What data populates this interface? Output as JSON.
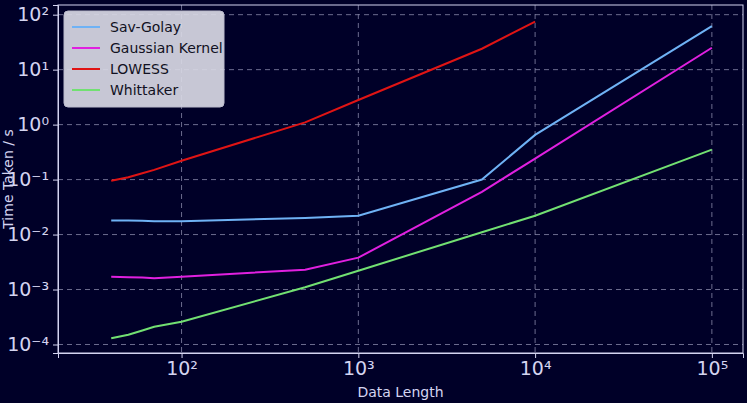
{
  "chart_data": {
    "type": "line",
    "x_label": "Data Length",
    "y_label": "Time Taken / s",
    "x": [
      40,
      50,
      60,
      70,
      100,
      500,
      1000,
      5000,
      10000,
      100000
    ],
    "series": [
      {
        "name": "Sav-Golay",
        "color": "#6fb2f5",
        "values": [
          0.018,
          0.018,
          0.0178,
          0.0175,
          0.0175,
          0.02,
          0.022,
          0.1,
          0.65,
          62
        ]
      },
      {
        "name": "Gaussian Kernel",
        "color": "#e020e0",
        "values": [
          0.0017,
          0.00168,
          0.00165,
          0.0016,
          0.0017,
          0.0023,
          0.0038,
          0.06,
          0.24,
          25
        ]
      },
      {
        "name": "LOWESS",
        "color": "#e01414",
        "values": [
          0.095,
          0.11,
          0.13,
          0.15,
          0.22,
          1.1,
          2.8,
          24,
          75,
          null
        ]
      },
      {
        "name": "Whittaker",
        "color": "#72e072",
        "values": [
          0.00013,
          0.00015,
          0.00018,
          0.00021,
          0.00026,
          0.0011,
          0.0022,
          0.011,
          0.022,
          0.35
        ]
      }
    ],
    "xlim": [
      20,
      150000
    ],
    "ylim": [
      7e-05,
      150
    ],
    "xticks": [
      {
        "value": 100,
        "label": "10²"
      },
      {
        "value": 1000,
        "label": "10³"
      },
      {
        "value": 10000,
        "label": "10⁴"
      },
      {
        "value": 100000,
        "label": "10⁵"
      }
    ],
    "yticks": [
      {
        "value": 0.0001,
        "label": "10⁻⁴"
      },
      {
        "value": 0.001,
        "label": "10⁻³"
      },
      {
        "value": 0.01,
        "label": "10⁻²"
      },
      {
        "value": 0.1,
        "label": "10⁻¹"
      },
      {
        "value": 1,
        "label": "10⁰"
      },
      {
        "value": 10,
        "label": "10¹"
      },
      {
        "value": 100,
        "label": "10²"
      }
    ],
    "log": true,
    "grid": true,
    "legend": "upper left"
  }
}
